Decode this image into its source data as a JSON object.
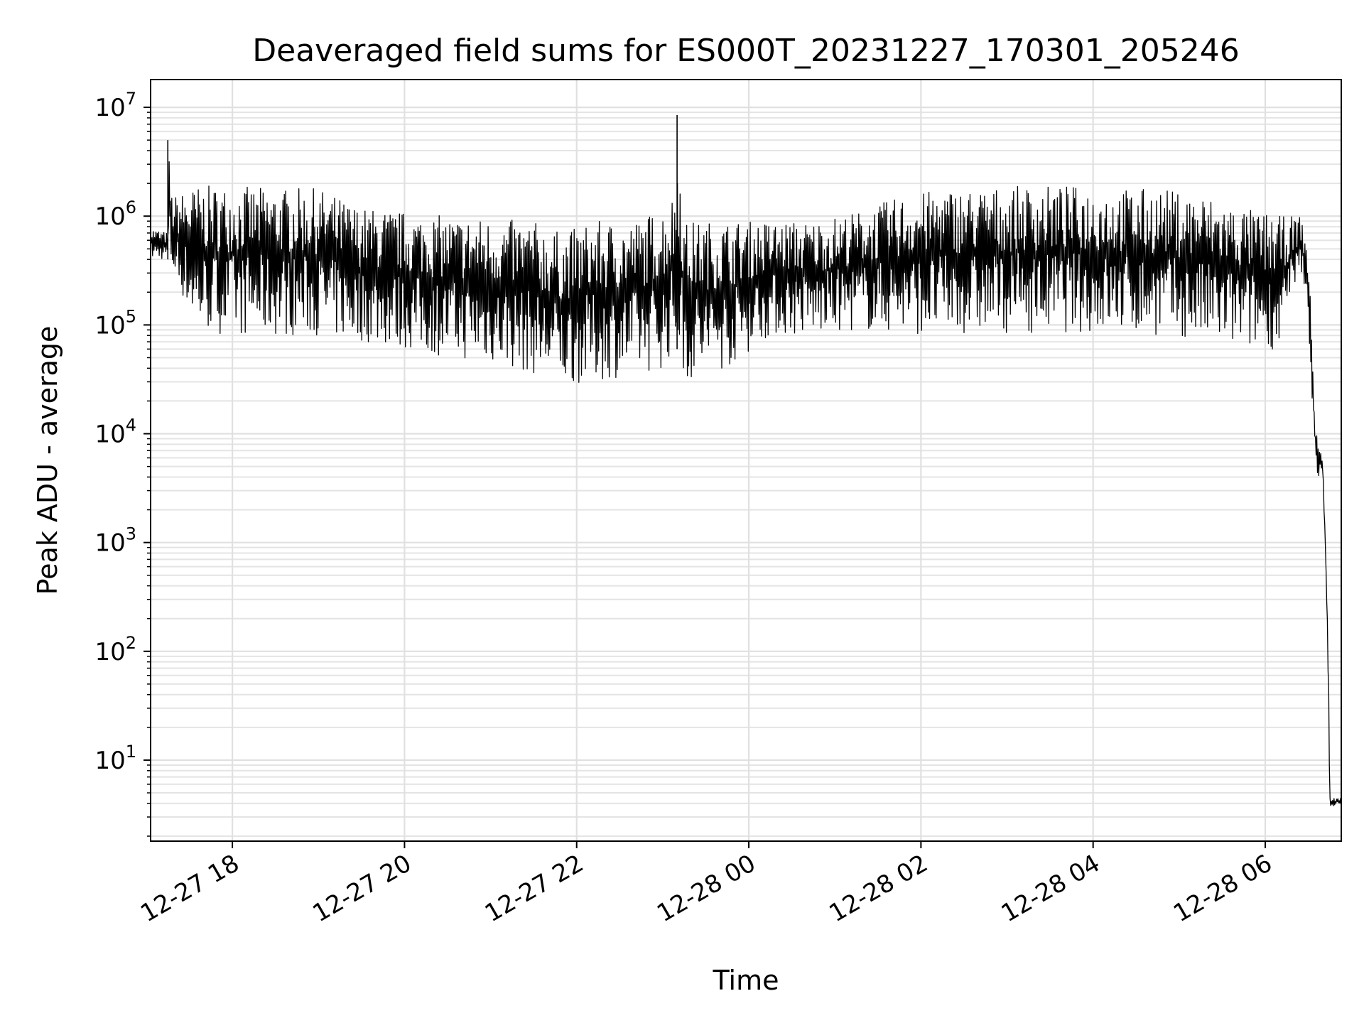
{
  "chart_data": {
    "type": "line",
    "title": "Deaveraged field sums for ES000T_20231227_170301_205246",
    "xlabel": "Time",
    "ylabel": "Peak ADU - average",
    "yscale": "log",
    "ylim": [
      1.8,
      18000000
    ],
    "xlim": [
      "2023-12-27 17:03",
      "2023-12-28 06:53"
    ],
    "grid": "both",
    "line_color": "#000000",
    "y_tick_labels": [
      "10^1",
      "10^2",
      "10^3",
      "10^4",
      "10^5",
      "10^6",
      "10^7"
    ],
    "x_tick_labels": [
      "12-27 18",
      "12-27 20",
      "12-27 22",
      "12-28 00",
      "12-28 02",
      "12-28 04",
      "12-28 06"
    ],
    "series": [
      {
        "envelope": {
          "x": [
            "2023-12-27 17:03",
            "2023-12-27 17:15",
            "2023-12-27 17:15",
            "2023-12-27 17:18",
            "2023-12-27 17:35",
            "2023-12-27 18:00",
            "2023-12-27 18:30",
            "2023-12-27 19:00",
            "2023-12-27 19:30",
            "2023-12-27 20:00",
            "2023-12-27 20:30",
            "2023-12-27 21:00",
            "2023-12-27 21:30",
            "2023-12-27 21:50",
            "2023-12-27 22:10",
            "2023-12-27 22:40",
            "2023-12-27 23:00",
            "2023-12-27 23:10",
            "2023-12-27 23:10",
            "2023-12-27 23:15",
            "2023-12-27 23:45",
            "2023-12-28 00:15",
            "2023-12-28 00:45",
            "2023-12-28 01:15",
            "2023-12-28 01:45",
            "2023-12-28 02:15",
            "2023-12-28 02:45",
            "2023-12-28 03:15",
            "2023-12-28 03:45",
            "2023-12-28 04:15",
            "2023-12-28 04:45",
            "2023-12-28 05:15",
            "2023-12-28 05:45",
            "2023-12-28 06:10",
            "2023-12-28 06:25",
            "2023-12-28 06:30",
            "2023-12-28 06:35",
            "2023-12-28 06:38",
            "2023-12-28 06:40",
            "2023-12-28 06:42",
            "2023-12-28 06:44",
            "2023-12-28 06:45",
            "2023-12-28 06:53"
          ],
          "high": [
            800000,
            700000,
            5000000,
            1500000,
            1900000,
            1900000,
            1800000,
            1800000,
            1200000,
            1100000,
            1000000,
            950000,
            900000,
            700000,
            900000,
            900000,
            1200000,
            1800000,
            8500000,
            900000,
            900000,
            900000,
            900000,
            1100000,
            1500000,
            1800000,
            1800000,
            1900000,
            1900000,
            1800000,
            1800000,
            1600000,
            1200000,
            1000000,
            1000000,
            500000,
            12000,
            8000,
            6000,
            1000,
            100,
            4.5,
            4.5
          ],
          "low": [
            400000,
            400000,
            400000,
            300000,
            90000,
            80000,
            80000,
            80000,
            70000,
            60000,
            50000,
            45000,
            35000,
            28000,
            30000,
            35000,
            40000,
            60000,
            60000,
            30000,
            40000,
            80000,
            80000,
            90000,
            85000,
            80000,
            85000,
            85000,
            85000,
            85000,
            80000,
            70000,
            60000,
            60000,
            300000,
            100000,
            5000,
            3500,
            4000,
            800,
            40,
            3.8,
            3.8
          ]
        }
      }
    ]
  }
}
